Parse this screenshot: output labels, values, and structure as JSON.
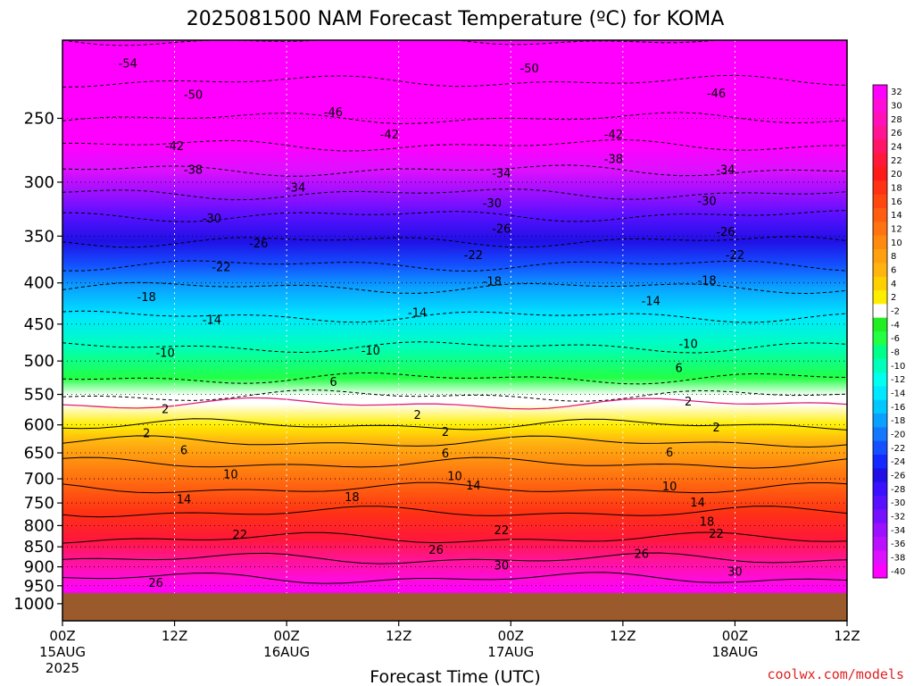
{
  "chart_data": {
    "type": "heatmap",
    "title": "2025081500 NAM Forecast Temperature (ºC) for KOMA",
    "xlabel": "Forecast Time (UTC)",
    "ylabel": "",
    "credit": "coolwx.com/models",
    "y_scale": "log-pressure",
    "ylim": [
      1050,
      200
    ],
    "y_ticks": [
      250,
      300,
      350,
      400,
      450,
      500,
      550,
      600,
      650,
      700,
      750,
      800,
      850,
      900,
      950,
      1000
    ],
    "x_ticks": [
      {
        "hour": 0,
        "top": "00Z",
        "mid": "15AUG",
        "bottom": "2025"
      },
      {
        "hour": 12,
        "top": "12Z",
        "mid": "",
        "bottom": ""
      },
      {
        "hour": 24,
        "top": "00Z",
        "mid": "16AUG",
        "bottom": ""
      },
      {
        "hour": 36,
        "top": "12Z",
        "mid": "",
        "bottom": ""
      },
      {
        "hour": 48,
        "top": "00Z",
        "mid": "17AUG",
        "bottom": ""
      },
      {
        "hour": 60,
        "top": "12Z",
        "mid": "",
        "bottom": ""
      },
      {
        "hour": 72,
        "top": "00Z",
        "mid": "18AUG",
        "bottom": ""
      },
      {
        "hour": 84,
        "top": "12Z",
        "mid": "",
        "bottom": ""
      }
    ],
    "xlim": [
      0,
      84
    ],
    "surface_pressure": 970,
    "colorbar": {
      "labels": [
        "32",
        "30",
        "28",
        "26",
        "24",
        "22",
        "20",
        "18",
        "16",
        "14",
        "12",
        "10",
        "8",
        "6",
        "4",
        "2",
        "-2",
        "-4",
        "-6",
        "-8",
        "-10",
        "-12",
        "-14",
        "-16",
        "-18",
        "-20",
        "-22",
        "-24",
        "-26",
        "-28",
        "-30",
        "-32",
        "-34",
        "-36",
        "-38",
        "-40"
      ],
      "colors": [
        "#ff00ff",
        "#ff0cd8",
        "#ff10b8",
        "#ff1493",
        "#ff1466",
        "#ff1838",
        "#ff1a1a",
        "#ff3214",
        "#ff4810",
        "#ff5e10",
        "#ff7410",
        "#ff8a10",
        "#ffa010",
        "#ffb410",
        "#ffd000",
        "#ffee00",
        "#ffffff",
        "#22ee22",
        "#22ff44",
        "#00ff88",
        "#00ffbb",
        "#00ffee",
        "#00e8ff",
        "#00c8ff",
        "#0aa0ff",
        "#1478ff",
        "#1450ff",
        "#1428ff",
        "#2010e6",
        "#3a10ff",
        "#5810ff",
        "#7610ff",
        "#9a10ff",
        "#bb10ff",
        "#dd10ff",
        "#ff00ff"
      ]
    },
    "temperature_levels": [
      {
        "pressure": 200,
        "temp": -54
      },
      {
        "pressure": 225,
        "temp": -50
      },
      {
        "pressure": 250,
        "temp": -46
      },
      {
        "pressure": 270,
        "temp": -42
      },
      {
        "pressure": 290,
        "temp": -38
      },
      {
        "pressure": 310,
        "temp": -34
      },
      {
        "pressure": 330,
        "temp": -30
      },
      {
        "pressure": 355,
        "temp": -26
      },
      {
        "pressure": 380,
        "temp": -22
      },
      {
        "pressure": 405,
        "temp": -18
      },
      {
        "pressure": 440,
        "temp": -14
      },
      {
        "pressure": 480,
        "temp": -10
      },
      {
        "pressure": 525,
        "temp": -6
      },
      {
        "pressure": 552,
        "temp": -2
      },
      {
        "pressure": 565,
        "temp": 0
      },
      {
        "pressure": 600,
        "temp": 2
      },
      {
        "pressure": 630,
        "temp": 6
      },
      {
        "pressure": 670,
        "temp": 10
      },
      {
        "pressure": 720,
        "temp": 14
      },
      {
        "pressure": 770,
        "temp": 18
      },
      {
        "pressure": 830,
        "temp": 22
      },
      {
        "pressure": 880,
        "temp": 26
      },
      {
        "pressure": 930,
        "temp": 30
      },
      {
        "pressure": 970,
        "temp": 32
      }
    ],
    "contour_labels": [
      {
        "hour": 7,
        "pressure": 214,
        "text": "-54"
      },
      {
        "hour": 50,
        "pressure": 217,
        "text": "-50"
      },
      {
        "hour": 14,
        "pressure": 234,
        "text": "-50"
      },
      {
        "hour": 70,
        "pressure": 233,
        "text": "-46"
      },
      {
        "hour": 29,
        "pressure": 246,
        "text": "-46"
      },
      {
        "hour": 35,
        "pressure": 262,
        "text": "-42"
      },
      {
        "hour": 12,
        "pressure": 271,
        "text": "-42"
      },
      {
        "hour": 59,
        "pressure": 262,
        "text": "-42"
      },
      {
        "hour": 59,
        "pressure": 281,
        "text": "-38"
      },
      {
        "hour": 14,
        "pressure": 290,
        "text": "-38"
      },
      {
        "hour": 47,
        "pressure": 293,
        "text": "-34"
      },
      {
        "hour": 71,
        "pressure": 290,
        "text": "-34"
      },
      {
        "hour": 25,
        "pressure": 305,
        "text": "-34"
      },
      {
        "hour": 46,
        "pressure": 319,
        "text": "-30"
      },
      {
        "hour": 69,
        "pressure": 317,
        "text": "-30"
      },
      {
        "hour": 16,
        "pressure": 333,
        "text": "-30"
      },
      {
        "hour": 47,
        "pressure": 343,
        "text": "-26"
      },
      {
        "hour": 71,
        "pressure": 346,
        "text": "-26"
      },
      {
        "hour": 21,
        "pressure": 358,
        "text": "-26"
      },
      {
        "hour": 44,
        "pressure": 370,
        "text": "-22"
      },
      {
        "hour": 72,
        "pressure": 370,
        "text": "-22"
      },
      {
        "hour": 17,
        "pressure": 383,
        "text": "-22"
      },
      {
        "hour": 46,
        "pressure": 399,
        "text": "-18"
      },
      {
        "hour": 69,
        "pressure": 398,
        "text": "-18"
      },
      {
        "hour": 9,
        "pressure": 417,
        "text": "-18"
      },
      {
        "hour": 63,
        "pressure": 422,
        "text": "-14"
      },
      {
        "hour": 38,
        "pressure": 436,
        "text": "-14"
      },
      {
        "hour": 16,
        "pressure": 445,
        "text": "-14"
      },
      {
        "hour": 67,
        "pressure": 477,
        "text": "-10"
      },
      {
        "hour": 33,
        "pressure": 486,
        "text": "-10"
      },
      {
        "hour": 11,
        "pressure": 489,
        "text": "-10"
      },
      {
        "hour": 66,
        "pressure": 511,
        "text": "6"
      },
      {
        "hour": 29,
        "pressure": 531,
        "text": "6"
      },
      {
        "hour": 67,
        "pressure": 562,
        "text": "2"
      },
      {
        "hour": 11,
        "pressure": 574,
        "text": "2"
      },
      {
        "hour": 38,
        "pressure": 584,
        "text": "2"
      },
      {
        "hour": 41,
        "pressure": 613,
        "text": "2"
      },
      {
        "hour": 9,
        "pressure": 615,
        "text": "2"
      },
      {
        "hour": 70,
        "pressure": 605,
        "text": "2"
      },
      {
        "hour": 13,
        "pressure": 646,
        "text": "6"
      },
      {
        "hour": 41,
        "pressure": 652,
        "text": "6"
      },
      {
        "hour": 65,
        "pressure": 650,
        "text": "6"
      },
      {
        "hour": 18,
        "pressure": 692,
        "text": "10"
      },
      {
        "hour": 42,
        "pressure": 695,
        "text": "10"
      },
      {
        "hour": 65,
        "pressure": 716,
        "text": "10"
      },
      {
        "hour": 44,
        "pressure": 714,
        "text": "14"
      },
      {
        "hour": 13,
        "pressure": 743,
        "text": "14"
      },
      {
        "hour": 68,
        "pressure": 750,
        "text": "14"
      },
      {
        "hour": 31,
        "pressure": 738,
        "text": "18"
      },
      {
        "hour": 69,
        "pressure": 792,
        "text": "18"
      },
      {
        "hour": 19,
        "pressure": 822,
        "text": "22"
      },
      {
        "hour": 47,
        "pressure": 811,
        "text": "22"
      },
      {
        "hour": 70,
        "pressure": 820,
        "text": "22"
      },
      {
        "hour": 40,
        "pressure": 858,
        "text": "26"
      },
      {
        "hour": 62,
        "pressure": 868,
        "text": "26"
      },
      {
        "hour": 10,
        "pressure": 943,
        "text": "26"
      },
      {
        "hour": 47,
        "pressure": 898,
        "text": "30"
      },
      {
        "hour": 72,
        "pressure": 914,
        "text": "30"
      }
    ]
  }
}
